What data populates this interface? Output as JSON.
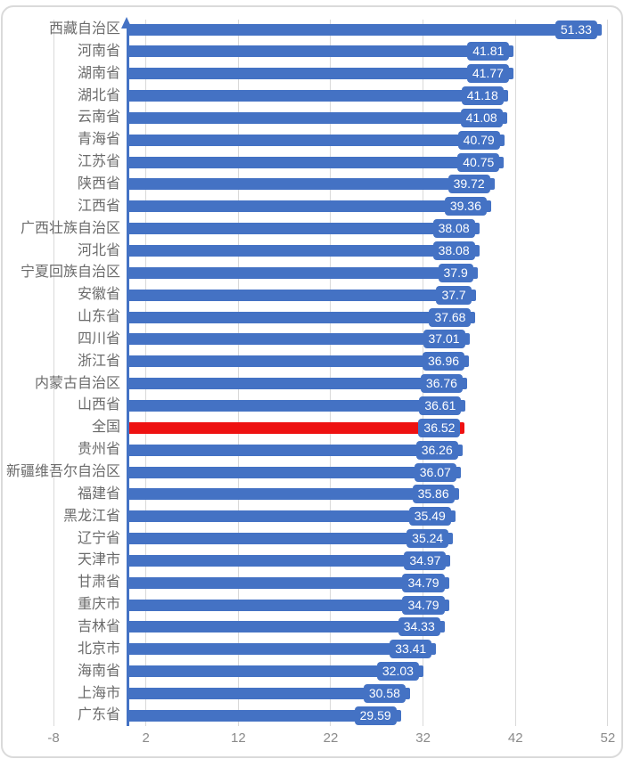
{
  "chart_data": {
    "type": "bar",
    "orientation": "horizontal",
    "title": "",
    "xlabel": "",
    "ylabel": "",
    "legend": "none",
    "grid": "vertical-only",
    "xlim": [
      -8,
      52
    ],
    "x_ticks": [
      "-8",
      "2",
      "12",
      "22",
      "32",
      "42",
      "52"
    ],
    "x_tick_values": [
      -8,
      2,
      12,
      22,
      32,
      42,
      52
    ],
    "categories": [
      "西藏自治区",
      "河南省",
      "湖南省",
      "湖北省",
      "云南省",
      "青海省",
      "江苏省",
      "陕西省",
      "江西省",
      "广西壮族自治区",
      "河北省",
      "宁夏回族自治区",
      "安徽省",
      "山东省",
      "四川省",
      "浙江省",
      "内蒙古自治区",
      "山西省",
      "全国",
      "贵州省",
      "新疆维吾尔自治区",
      "福建省",
      "黑龙江省",
      "辽宁省",
      "天津市",
      "甘肃省",
      "重庆市",
      "吉林省",
      "北京市",
      "海南省",
      "上海市",
      "广东省"
    ],
    "values": [
      51.33,
      41.81,
      41.77,
      41.18,
      41.08,
      40.79,
      40.75,
      39.72,
      39.36,
      38.08,
      38.08,
      37.9,
      37.7,
      37.68,
      37.01,
      36.96,
      36.76,
      36.61,
      36.52,
      36.26,
      36.07,
      35.86,
      35.49,
      35.24,
      34.97,
      34.79,
      34.79,
      34.33,
      33.41,
      32.03,
      30.58,
      29.59
    ],
    "value_labels": [
      "51.33",
      "41.81",
      "41.77",
      "41.18",
      "41.08",
      "40.79",
      "40.75",
      "39.72",
      "39.36",
      "38.08",
      "38.08",
      "37.9",
      "37.7",
      "37.68",
      "37.01",
      "36.96",
      "36.76",
      "36.61",
      "36.52",
      "36.26",
      "36.07",
      "35.86",
      "35.49",
      "35.24",
      "34.97",
      "34.79",
      "34.79",
      "34.33",
      "33.41",
      "32.03",
      "30.58",
      "29.59"
    ],
    "highlight_category": "全国",
    "highlight_index": 18,
    "colors": {
      "bar": "#4472C4",
      "highlight_bar": "#EE1111",
      "value_label_box": "#4472C4",
      "value_label_text": "#FFFFFF",
      "category_label_text": "#6B6B6B",
      "tick_label_text": "#8A8A8A",
      "gridline": "#D9D9D9",
      "axis": "#4472C4",
      "frame_border": "#DADADA"
    },
    "axis_arrow": "up-arrow-at-top-of-zero-axis"
  }
}
